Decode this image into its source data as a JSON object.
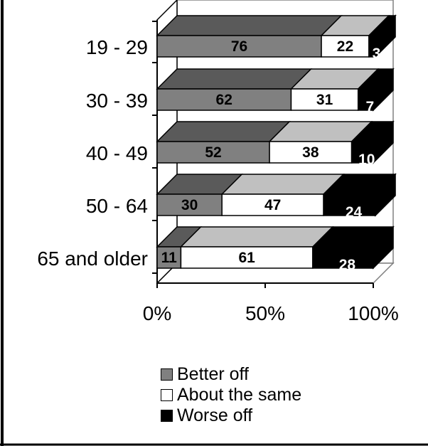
{
  "chart_data": {
    "type": "bar",
    "stacked": true,
    "orientation": "horizontal",
    "three_d": true,
    "categories": [
      "19 - 29",
      "30 - 39",
      "40 - 49",
      "50 - 64",
      "65 and older"
    ],
    "series": [
      {
        "name": "Better off",
        "values": [
          76,
          62,
          52,
          30,
          11
        ],
        "color": "#808080"
      },
      {
        "name": "About the same",
        "values": [
          22,
          31,
          38,
          47,
          61
        ],
        "color": "#ffffff"
      },
      {
        "name": "Worse off",
        "values": [
          3,
          7,
          10,
          24,
          28
        ],
        "color": "#000000"
      }
    ],
    "xlim": [
      0,
      100
    ],
    "x_ticks": [
      "0%",
      "50%",
      "100%"
    ],
    "legend_position": "bottom"
  }
}
